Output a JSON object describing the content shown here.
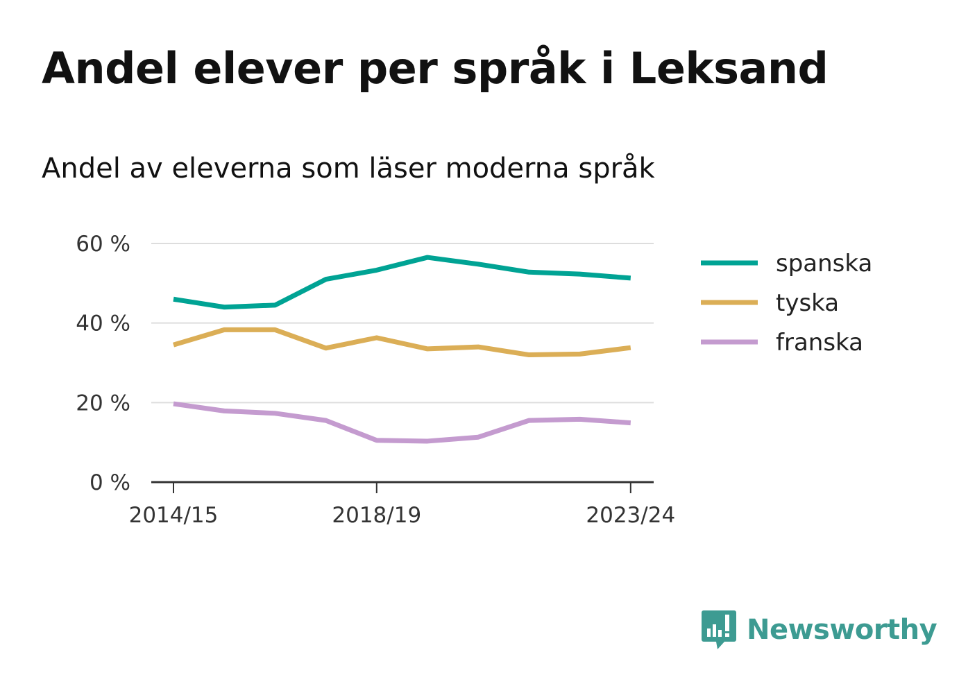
{
  "title": "Andel elever per språk i Leksand",
  "subtitle": "Andel av eleverna som läser moderna språk",
  "brand": {
    "name": "Newsworthy",
    "icon": "newsworthy-logo-icon",
    "color": "#3d9b92"
  },
  "chart_data": {
    "type": "line",
    "title": "Andel elever per språk i Leksand",
    "subtitle": "Andel av eleverna som läser moderna språk",
    "x": [
      "2014/15",
      "2015/16",
      "2016/17",
      "2017/18",
      "2018/19",
      "2019/20",
      "2020/21",
      "2021/22",
      "2022/23",
      "2023/24"
    ],
    "x_tick_labels": [
      "2014/15",
      "2018/19",
      "2023/24"
    ],
    "y_ticks": [
      0,
      20,
      40,
      60
    ],
    "y_tick_labels": [
      "0 %",
      "20 %",
      "40 %",
      "60 %"
    ],
    "ylim": [
      0,
      60
    ],
    "grid": true,
    "legend_position": "right",
    "series": [
      {
        "name": "spanska",
        "color": "#00a394",
        "values": [
          46.0,
          44.0,
          44.5,
          51.0,
          53.3,
          56.5,
          54.8,
          52.8,
          52.3,
          51.3
        ]
      },
      {
        "name": "tyska",
        "color": "#dbae56",
        "values": [
          34.5,
          38.3,
          38.3,
          33.7,
          36.3,
          33.5,
          34.0,
          32.0,
          32.2,
          33.8
        ]
      },
      {
        "name": "franska",
        "color": "#c49bcf",
        "values": [
          19.7,
          17.9,
          17.3,
          15.5,
          10.5,
          10.3,
          11.3,
          15.5,
          15.8,
          14.9
        ]
      }
    ]
  }
}
